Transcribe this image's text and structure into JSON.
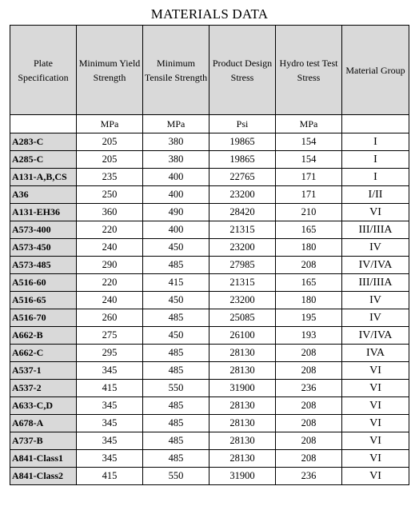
{
  "title": "MATERIALS DATA",
  "headers": [
    "Plate Specification",
    "Minimum Yield Strength",
    "Minimum Tensile Strength",
    "Product Design Stress",
    "Hydro test Test Stress",
    "Material Group"
  ],
  "units": [
    "",
    "MPa",
    "MPa",
    "Psi",
    "MPa",
    ""
  ],
  "rows": [
    {
      "spec": "A283-C",
      "yield": "205",
      "tensile": "380",
      "design": "19865",
      "hydro": "154",
      "group": "I"
    },
    {
      "spec": "A285-C",
      "yield": "205",
      "tensile": "380",
      "design": "19865",
      "hydro": "154",
      "group": "I"
    },
    {
      "spec": "A131-A,B,CS",
      "yield": "235",
      "tensile": "400",
      "design": "22765",
      "hydro": "171",
      "group": "I"
    },
    {
      "spec": "A36",
      "yield": "250",
      "tensile": "400",
      "design": "23200",
      "hydro": "171",
      "group": "I/II"
    },
    {
      "spec": "A131-EH36",
      "yield": "360",
      "tensile": "490",
      "design": "28420",
      "hydro": "210",
      "group": "VI"
    },
    {
      "spec": "A573-400",
      "yield": "220",
      "tensile": "400",
      "design": "21315",
      "hydro": "165",
      "group": "III/IIIA"
    },
    {
      "spec": "A573-450",
      "yield": "240",
      "tensile": "450",
      "design": "23200",
      "hydro": "180",
      "group": "IV"
    },
    {
      "spec": "A573-485",
      "yield": "290",
      "tensile": "485",
      "design": "27985",
      "hydro": "208",
      "group": "IV/IVA"
    },
    {
      "spec": "A516-60",
      "yield": "220",
      "tensile": "415",
      "design": "21315",
      "hydro": "165",
      "group": "III/IIIA"
    },
    {
      "spec": "A516-65",
      "yield": "240",
      "tensile": "450",
      "design": "23200",
      "hydro": "180",
      "group": "IV"
    },
    {
      "spec": "A516-70",
      "yield": "260",
      "tensile": "485",
      "design": "25085",
      "hydro": "195",
      "group": "IV"
    },
    {
      "spec": "A662-B",
      "yield": "275",
      "tensile": "450",
      "design": "26100",
      "hydro": "193",
      "group": "IV/IVA"
    },
    {
      "spec": "A662-C",
      "yield": "295",
      "tensile": "485",
      "design": "28130",
      "hydro": "208",
      "group": "IVA"
    },
    {
      "spec": "A537-1",
      "yield": "345",
      "tensile": "485",
      "design": "28130",
      "hydro": "208",
      "group": "VI"
    },
    {
      "spec": "A537-2",
      "yield": "415",
      "tensile": "550",
      "design": "31900",
      "hydro": "236",
      "group": "VI"
    },
    {
      "spec": "A633-C,D",
      "yield": "345",
      "tensile": "485",
      "design": "28130",
      "hydro": "208",
      "group": "VI"
    },
    {
      "spec": "A678-A",
      "yield": "345",
      "tensile": "485",
      "design": "28130",
      "hydro": "208",
      "group": "VI"
    },
    {
      "spec": "A737-B",
      "yield": "345",
      "tensile": "485",
      "design": "28130",
      "hydro": "208",
      "group": "VI"
    },
    {
      "spec": "A841-Class1",
      "yield": "345",
      "tensile": "485",
      "design": "28130",
      "hydro": "208",
      "group": "VI"
    },
    {
      "spec": "A841-Class2",
      "yield": "415",
      "tensile": "550",
      "design": "31900",
      "hydro": "236",
      "group": "VI"
    }
  ],
  "colors": {
    "header_fill": "#d9d9d9",
    "grid_line": "#000000"
  }
}
